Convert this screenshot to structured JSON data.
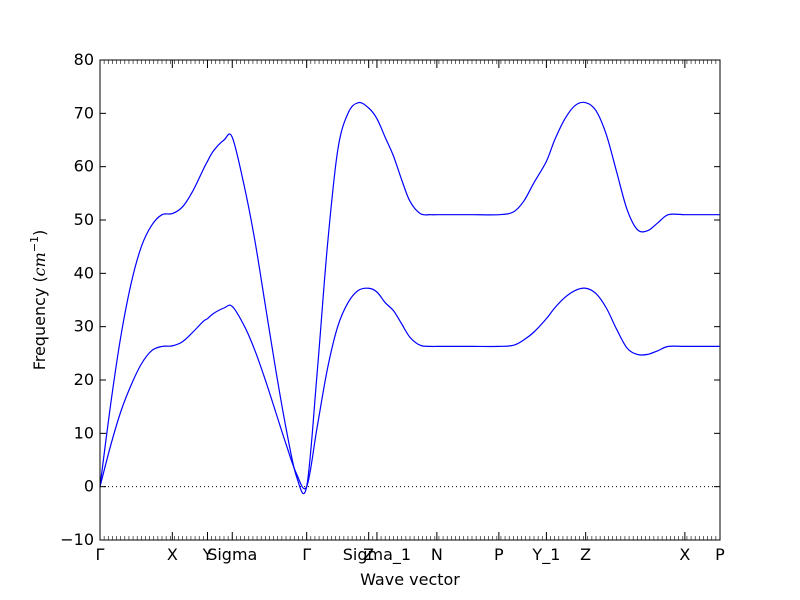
{
  "chart_data": {
    "type": "line",
    "title": "",
    "xlabel": "Wave vector",
    "ylabel": "Frequency (",
    "ylabel_unit": "cm",
    "ylabel_exp": "−1",
    "ylabel_close": ")",
    "xlim": [
      0,
      30
    ],
    "ylim": [
      -10,
      80
    ],
    "yticks": [
      -10,
      0,
      10,
      20,
      30,
      40,
      50,
      60,
      70,
      80
    ],
    "ytick_labels": [
      "−10",
      "0",
      "10",
      "20",
      "30",
      "40",
      "50",
      "60",
      "70",
      "80"
    ],
    "xticks": [
      {
        "x": 0,
        "label": "Γ"
      },
      {
        "x": 3.5,
        "label": "X"
      },
      {
        "x": 5.2,
        "label": "Y"
      },
      {
        "x": 6.4,
        "label": "Sigma"
      },
      {
        "x": 10.0,
        "label": "Γ"
      },
      {
        "x": 13.0,
        "label": "Z"
      },
      {
        "x": 13.4,
        "label": "Sigma_1"
      },
      {
        "x": 16.3,
        "label": "N"
      },
      {
        "x": 19.3,
        "label": "P"
      },
      {
        "x": 21.6,
        "label": "Y_1"
      },
      {
        "x": 23.5,
        "label": "Z"
      },
      {
        "x": 28.3,
        "label": "X"
      },
      {
        "x": 30.0,
        "label": "P"
      }
    ],
    "zero_line": {
      "y": 0,
      "style": "dotted"
    },
    "line_color": "#0000ff",
    "series": [
      {
        "x": [
          0,
          0.5,
          1.0,
          1.5,
          2.0,
          2.5,
          3.0,
          3.5,
          4.0,
          4.5,
          5.0,
          5.2,
          5.5,
          6.0,
          6.4,
          7.0,
          7.5,
          8.0,
          8.5,
          9.0,
          9.5,
          10.0,
          10.5,
          11.0,
          11.5,
          12.0,
          12.5,
          13.0,
          13.4,
          13.8,
          14.2,
          14.6,
          15.0,
          15.5,
          16.0,
          16.3,
          17.0,
          18.0,
          19.3,
          20.0,
          20.5,
          21.0,
          21.6,
          22.0,
          22.5,
          23.0,
          23.5,
          24.0,
          24.5,
          25.0,
          25.5,
          26.0,
          26.5,
          27.0,
          27.5,
          28.3,
          29.0,
          30.0
        ],
        "y": [
          0,
          15,
          28,
          38,
          45,
          49,
          51,
          51.2,
          52.5,
          55.5,
          59.5,
          61,
          63,
          65,
          65.5,
          56,
          46,
          34,
          22,
          11,
          2,
          0,
          21,
          45,
          63,
          70,
          72,
          71,
          69,
          65.5,
          62,
          57.5,
          53.5,
          51.2,
          51,
          51,
          51,
          51,
          51,
          51.5,
          53.5,
          57,
          61,
          65,
          69,
          71.5,
          72,
          70.5,
          66,
          59,
          52,
          48.2,
          48,
          49.5,
          51,
          51,
          51,
          51
        ]
      },
      {
        "x": [
          0,
          0.5,
          1.0,
          1.5,
          2.0,
          2.5,
          3.0,
          3.5,
          4.0,
          4.5,
          5.0,
          5.2,
          5.5,
          6.0,
          6.4,
          7.0,
          7.5,
          8.0,
          8.5,
          9.0,
          9.5,
          10.0,
          10.5,
          11.0,
          11.5,
          12.0,
          12.5,
          13.0,
          13.4,
          13.8,
          14.2,
          14.6,
          15.0,
          15.5,
          16.0,
          16.3,
          17.0,
          18.0,
          19.3,
          20.0,
          20.5,
          21.0,
          21.6,
          22.0,
          22.5,
          23.0,
          23.5,
          24.0,
          24.5,
          25.0,
          25.5,
          26.0,
          26.5,
          27.0,
          27.5,
          28.3,
          29.0,
          30.0
        ],
        "y": [
          0,
          7.5,
          14,
          19,
          23,
          25.5,
          26.3,
          26.4,
          27.2,
          29,
          31,
          31.5,
          32.5,
          33.5,
          33.8,
          30,
          25.5,
          20,
          14,
          8,
          2.5,
          0,
          11,
          22,
          30,
          34.5,
          36.8,
          37.2,
          36.5,
          34.5,
          33,
          30.5,
          28,
          26.5,
          26.3,
          26.3,
          26.3,
          26.3,
          26.3,
          26.5,
          27.5,
          29,
          31.5,
          33.5,
          35.5,
          36.8,
          37.2,
          36.2,
          33.5,
          29.5,
          26,
          24.8,
          24.8,
          25.5,
          26.3,
          26.3,
          26.3,
          26.3
        ]
      }
    ]
  }
}
